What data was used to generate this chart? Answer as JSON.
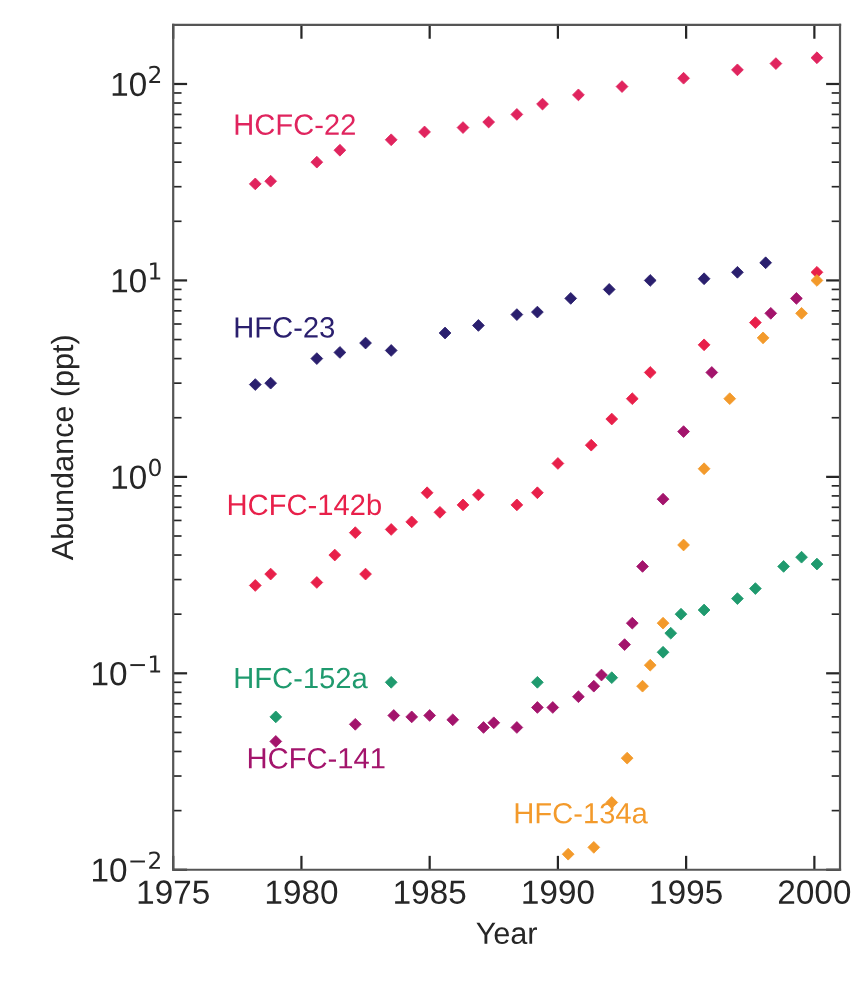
{
  "chart_data": {
    "type": "scatter",
    "xlabel": "Year",
    "ylabel": "Abundance (ppt)",
    "log": "y",
    "marker": "diamond",
    "grid": false,
    "legend": false,
    "xlim": [
      1975,
      2001
    ],
    "xticks": [
      1975,
      1980,
      1985,
      1990,
      1995,
      2000
    ],
    "ylim": [
      0.01,
      200
    ],
    "yticks": [
      {
        "value": 0.01,
        "label": "10$^{−2}$"
      },
      {
        "value": 0.1,
        "label": "10$^{−1}$"
      },
      {
        "value": 1,
        "label": "10$^{0}$"
      },
      {
        "value": 10,
        "label": "10$^{1}$"
      },
      {
        "value": 100,
        "label": "10$^{2}$"
      }
    ],
    "series": [
      {
        "name": "HCFC-22",
        "color": "#e0245e",
        "x": [
          1978.2,
          1978.8,
          1980.6,
          1981.5,
          1983.5,
          1984.8,
          1986.3,
          1987.3,
          1988.4,
          1989.4,
          1990.8,
          1992.5,
          1994.9,
          1997,
          1998.5,
          2000.1
        ],
        "values": [
          31,
          32,
          40,
          46,
          52,
          57,
          60,
          64,
          70,
          79,
          88,
          97,
          107,
          118,
          127,
          136
        ]
      },
      {
        "name": "HFC-23",
        "color": "#2a1f6e",
        "x": [
          1978.2,
          1978.8,
          1980.6,
          1981.5,
          1982.5,
          1983.5,
          1985.6,
          1986.9,
          1988.4,
          1989.2,
          1990.5,
          1992,
          1993.6,
          1995.7,
          1997,
          1998.1
        ],
        "values": [
          2.95,
          3.0,
          4.0,
          4.3,
          4.8,
          4.4,
          5.4,
          5.9,
          6.7,
          6.9,
          8.1,
          9,
          10,
          10.2,
          11,
          12.3
        ]
      },
      {
        "name": "HCFC-142b",
        "color": "#e8204a",
        "x": [
          1978.2,
          1978.8,
          1980.6,
          1981.3,
          1982.1,
          1982.5,
          1983.5,
          1984.3,
          1984.9,
          1985.4,
          1986.3,
          1986.9,
          1988.4,
          1989.2,
          1990,
          1991.3,
          1992.1,
          1992.9,
          1993.6,
          1995.7,
          1997.7,
          2000.1
        ],
        "values": [
          0.28,
          0.32,
          0.29,
          0.4,
          0.52,
          0.32,
          0.54,
          0.59,
          0.83,
          0.66,
          0.72,
          0.81,
          0.72,
          0.83,
          1.17,
          1.45,
          1.97,
          2.5,
          3.4,
          4.7,
          6.1,
          11
        ]
      },
      {
        "name": "HCFC-141",
        "color": "#a3146c",
        "x": [
          1979,
          1982.1,
          1983.6,
          1984.3,
          1985,
          1985.9,
          1987.1,
          1987.5,
          1988.4,
          1989.2,
          1989.8,
          1990.8,
          1991.4,
          1991.7,
          1992.6,
          1992.9,
          1993.3,
          1994.1,
          1994.9,
          1996,
          1998.3,
          1999.3
        ],
        "values": [
          0.045,
          0.055,
          0.061,
          0.06,
          0.061,
          0.058,
          0.053,
          0.056,
          0.053,
          0.067,
          0.067,
          0.076,
          0.086,
          0.098,
          0.14,
          0.18,
          0.35,
          0.77,
          1.7,
          3.4,
          6.8,
          8.1
        ]
      },
      {
        "name": "HFC-152a",
        "color": "#1f9a6e",
        "x": [
          1979,
          1983.5,
          1989.2,
          1992.1,
          1994.1,
          1994.4,
          1994.8,
          1995.7,
          1997,
          1997.7,
          1998.8,
          1999.5,
          2000.1
        ],
        "values": [
          0.06,
          0.09,
          0.09,
          0.095,
          0.128,
          0.16,
          0.2,
          0.21,
          0.24,
          0.27,
          0.35,
          0.39,
          0.36
        ]
      },
      {
        "name": "HFC-134a",
        "color": "#f39a2b",
        "x": [
          1990.4,
          1991.4,
          1992.1,
          1992.7,
          1993.3,
          1993.6,
          1994.1,
          1994.9,
          1995.7,
          1996.7,
          1998,
          1999.5,
          2000.1
        ],
        "values": [
          0.012,
          0.013,
          0.022,
          0.037,
          0.086,
          0.11,
          0.18,
          0.45,
          1.1,
          2.5,
          5.1,
          6.8,
          10
        ]
      }
    ]
  }
}
